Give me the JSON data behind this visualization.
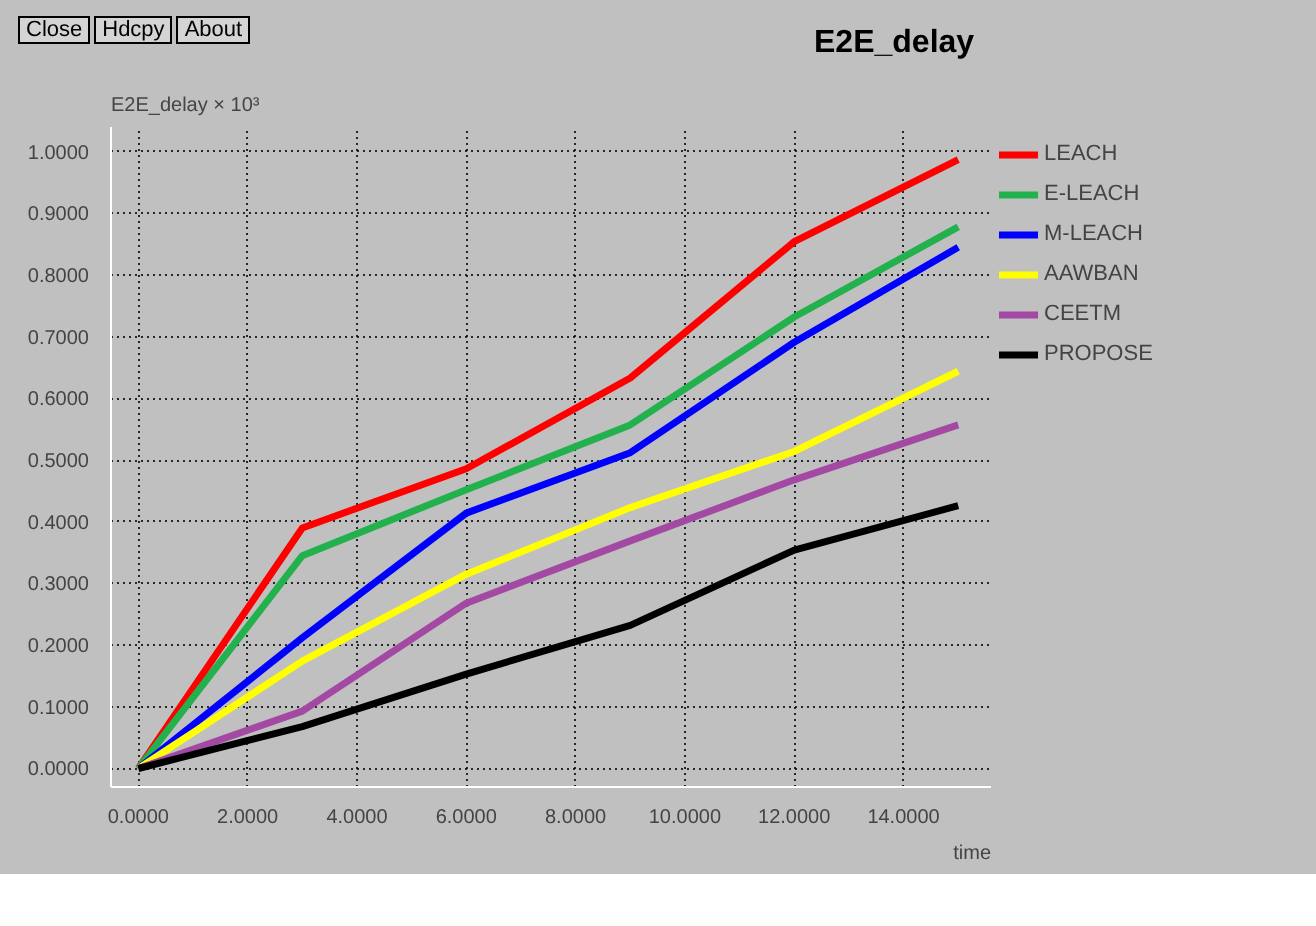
{
  "chart_data": {
    "type": "line",
    "title": "E2E_delay",
    "ylabel": "E2E_delay × 10³",
    "xlabel": "time",
    "annotations": [
      "Close",
      "Hdcpy",
      "About"
    ],
    "x": [
      0,
      3,
      6,
      9,
      12,
      15
    ],
    "series": [
      {
        "name": "LEACH",
        "color": "#ff0000",
        "values": [
          0,
          0.39,
          0.486,
          0.633,
          0.854,
          0.987
        ]
      },
      {
        "name": "E-LEACH",
        "color": "#22b14c",
        "values": [
          0,
          0.345,
          0.452,
          0.557,
          0.732,
          0.878
        ]
      },
      {
        "name": "M-LEACH",
        "color": "#0000ff",
        "values": [
          0,
          0.212,
          0.414,
          0.512,
          0.691,
          0.845
        ]
      },
      {
        "name": "AAWBAN",
        "color": "#ffff00",
        "values": [
          0,
          0.174,
          0.315,
          0.423,
          0.514,
          0.644
        ]
      },
      {
        "name": "CEETM",
        "color": "#a349a4",
        "values": [
          0,
          0.093,
          0.268,
          0.369,
          0.468,
          0.557
        ]
      },
      {
        "name": "PROPOSE",
        "color": "#000000",
        "values": [
          0,
          0.068,
          0.153,
          0.232,
          0.354,
          0.426
        ]
      }
    ],
    "xlim": [
      -0.5,
      15.6
    ],
    "ylim": [
      -0.03,
      1.04
    ],
    "xticks": [
      {
        "value": 0,
        "label": "0.0000"
      },
      {
        "value": 2,
        "label": "2.0000"
      },
      {
        "value": 4,
        "label": "4.0000"
      },
      {
        "value": 6,
        "label": "6.0000"
      },
      {
        "value": 8,
        "label": "8.0000"
      },
      {
        "value": 10,
        "label": "10.0000"
      },
      {
        "value": 12,
        "label": "12.0000"
      },
      {
        "value": 14,
        "label": "14.0000"
      }
    ],
    "yticks": [
      {
        "value": 0,
        "label": "0.0000"
      },
      {
        "value": 0.1,
        "label": "0.1000"
      },
      {
        "value": 0.2,
        "label": "0.2000"
      },
      {
        "value": 0.3,
        "label": "0.3000"
      },
      {
        "value": 0.4,
        "label": "0.4000"
      },
      {
        "value": 0.5,
        "label": "0.5000"
      },
      {
        "value": 0.6,
        "label": "0.6000"
      },
      {
        "value": 0.7,
        "label": "0.7000"
      },
      {
        "value": 0.8,
        "label": "0.8000"
      },
      {
        "value": 0.9,
        "label": "0.9000"
      },
      {
        "value": 1.0,
        "label": "1.0000"
      }
    ],
    "grid": true,
    "legend": "right",
    "line_style": "solid"
  }
}
